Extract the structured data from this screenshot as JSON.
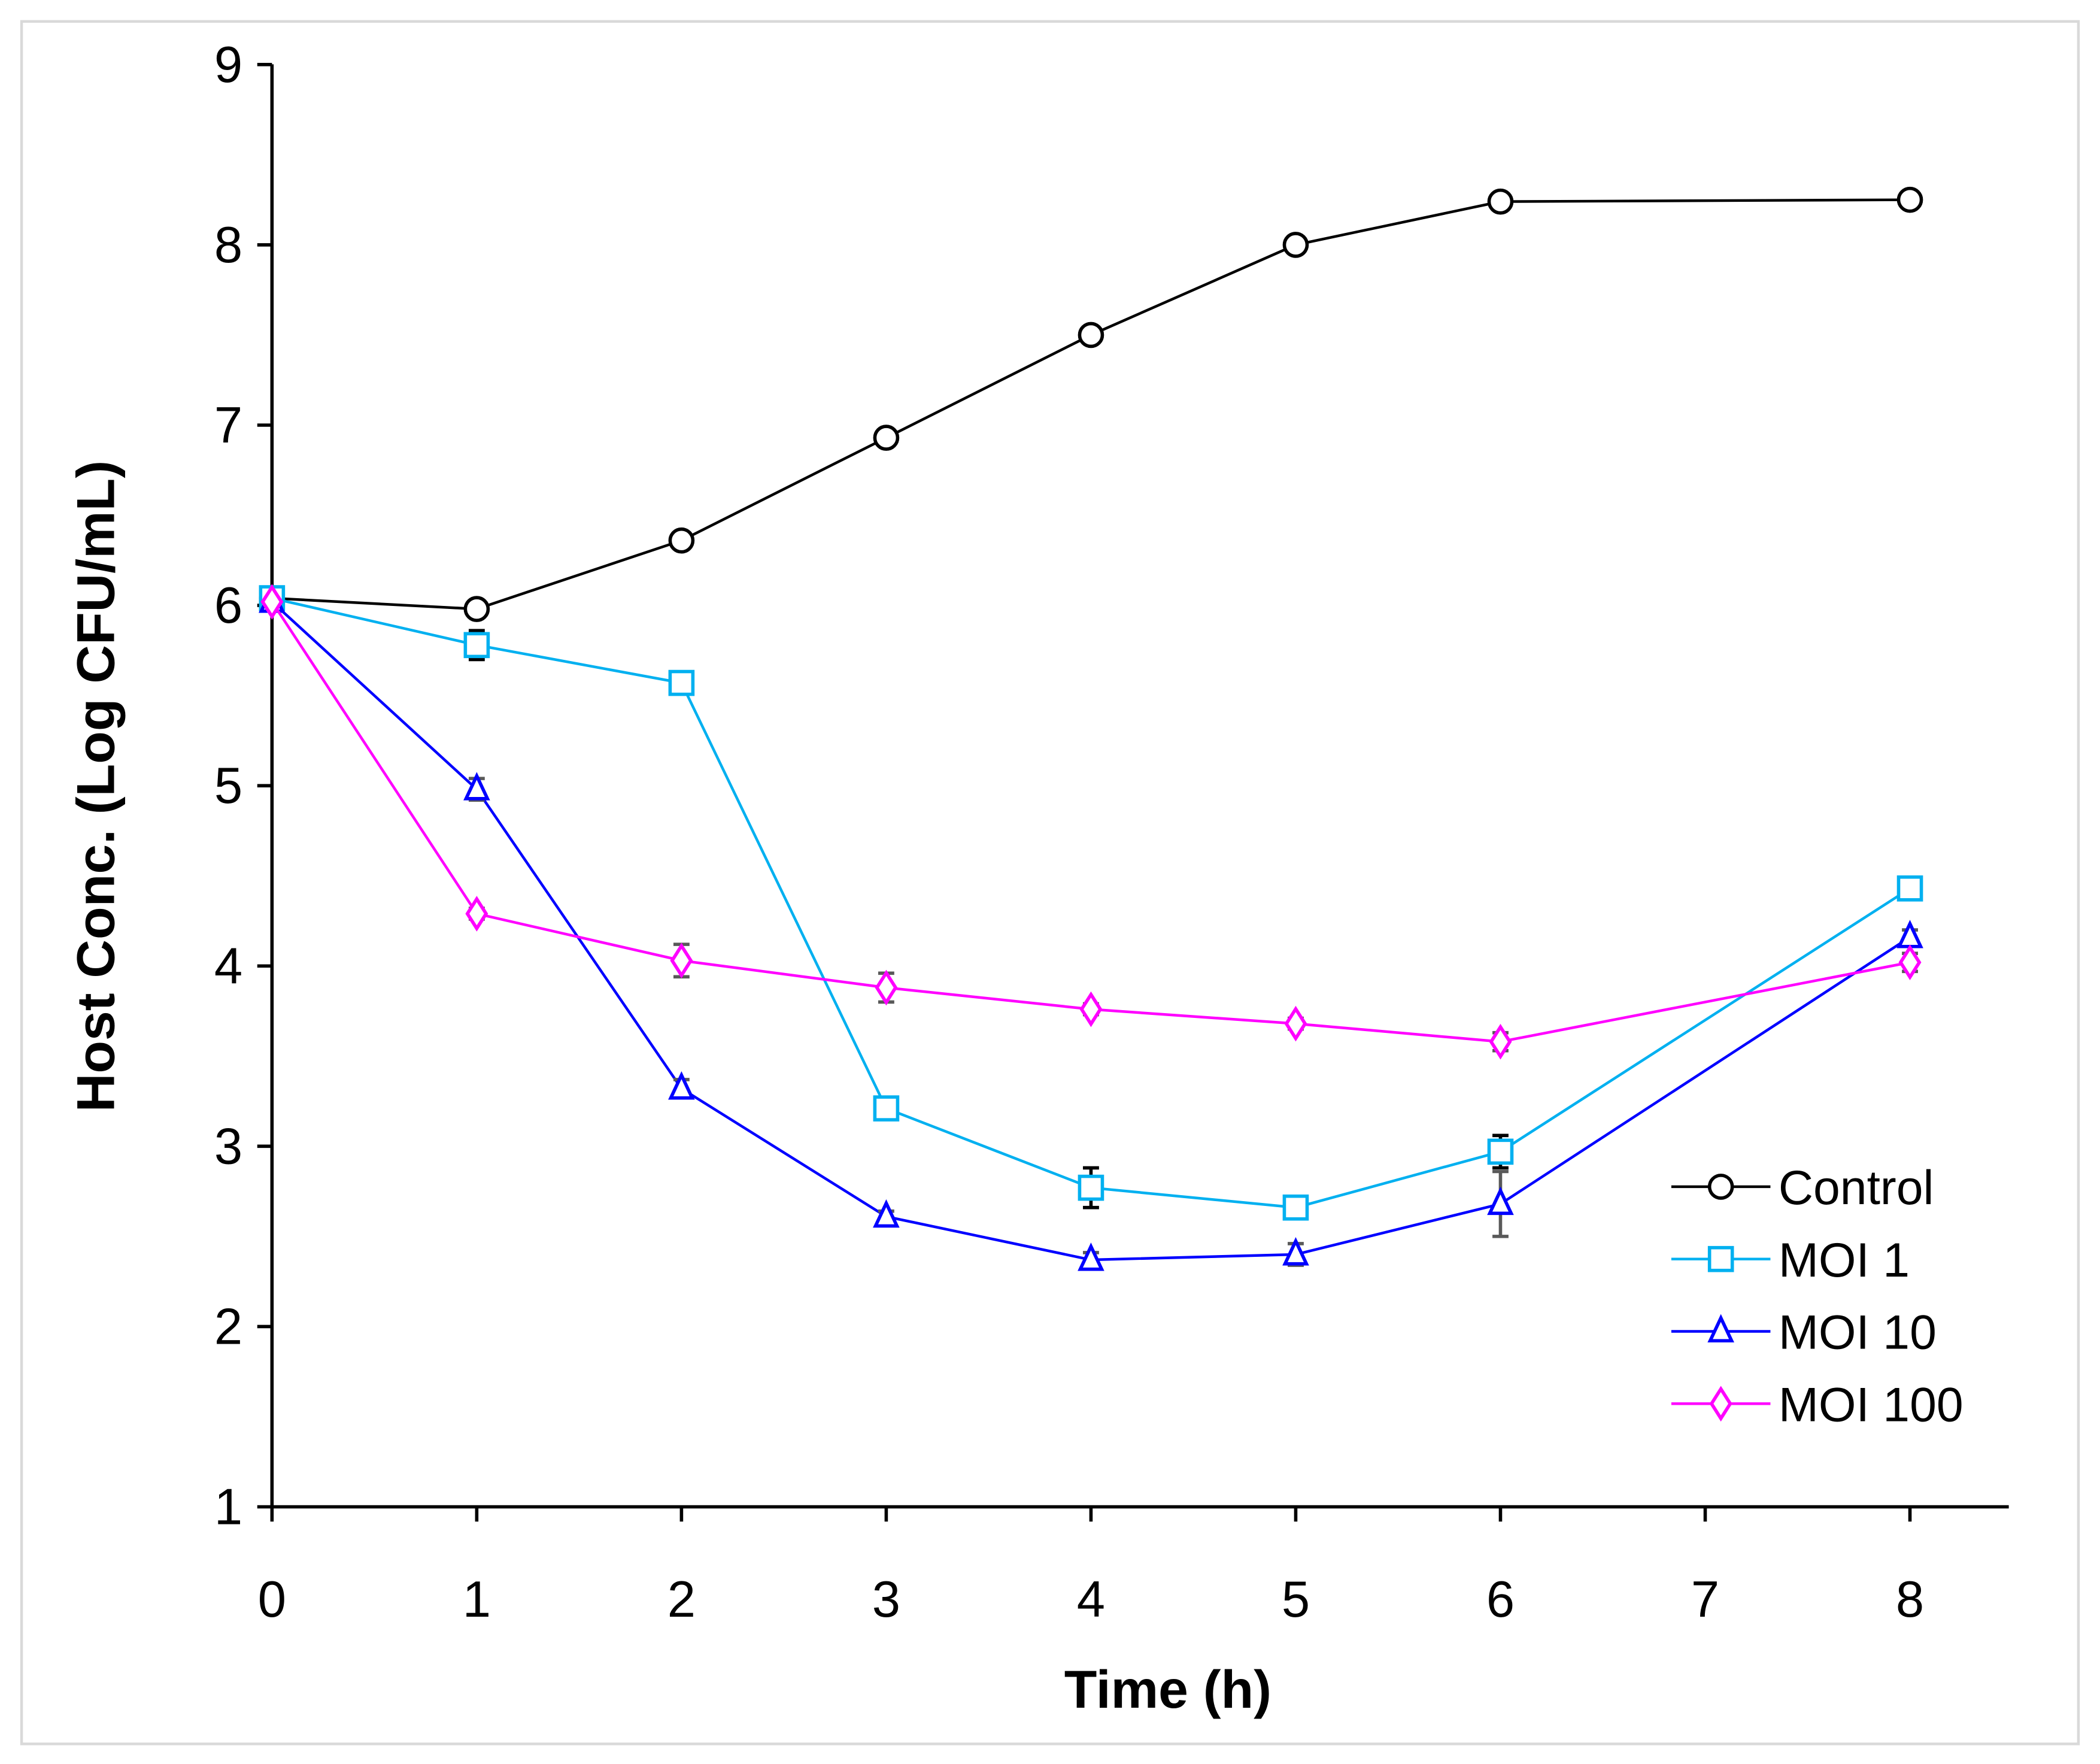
{
  "chart_data": {
    "type": "line",
    "title": "",
    "xlabel": "Time (h)",
    "ylabel": "Host Conc. (Log CFU/mL)",
    "xlim": [
      0,
      8.5
    ],
    "ylim": [
      1,
      9
    ],
    "xticks": [
      "0",
      "1",
      "2",
      "3",
      "4",
      "5",
      "6",
      "7",
      "8"
    ],
    "yticks": [
      "1",
      "2",
      "3",
      "4",
      "5",
      "6",
      "7",
      "8",
      "9"
    ],
    "grid": false,
    "legend_position": "bottom-right",
    "x": [
      0,
      1,
      2,
      3,
      4,
      5,
      6,
      8
    ],
    "series": [
      {
        "name": "Control",
        "color": "#000000",
        "errcolor": "#000000",
        "marker": "circle",
        "values": [
          6.04,
          5.98,
          6.36,
          6.93,
          7.5,
          8.0,
          8.24,
          8.25
        ],
        "errors": [
          0.02,
          0.03,
          0.03,
          0.03,
          0.03,
          0.03,
          0.02,
          0.02
        ]
      },
      {
        "name": "MOI 1",
        "color": "#00B0F0",
        "errcolor": "#000000",
        "marker": "square",
        "values": [
          6.04,
          5.78,
          5.57,
          3.21,
          2.77,
          2.66,
          2.97,
          4.43
        ],
        "errors": [
          0.02,
          0.08,
          0.04,
          0.04,
          0.11,
          0.05,
          0.09,
          0.04
        ]
      },
      {
        "name": "MOI 10",
        "color": "#0000FF",
        "errcolor": "#595959",
        "marker": "triangle",
        "values": [
          6.02,
          4.98,
          3.32,
          2.61,
          2.37,
          2.4,
          2.68,
          4.16
        ],
        "errors": [
          0.02,
          0.06,
          0.05,
          0.03,
          0.04,
          0.06,
          0.18,
          0.04
        ]
      },
      {
        "name": "MOI 100",
        "color": "#FF00FF",
        "errcolor": "#595959",
        "marker": "diamond",
        "values": [
          6.02,
          4.29,
          4.03,
          3.88,
          3.76,
          3.68,
          3.58,
          4.02
        ],
        "errors": [
          0.02,
          0.03,
          0.09,
          0.08,
          0.03,
          0.03,
          0.05,
          0.05
        ]
      }
    ]
  }
}
